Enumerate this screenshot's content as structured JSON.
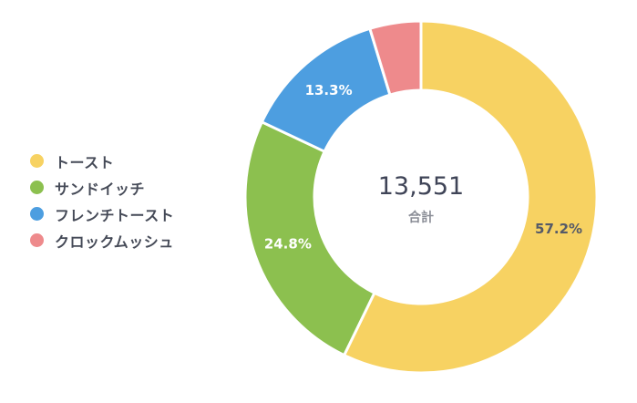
{
  "chart_data": {
    "type": "donut",
    "categories": [
      "トースト",
      "サンドイッチ",
      "フレンチトースト",
      "クロックムッシュ"
    ],
    "values": [
      57.2,
      24.8,
      13.3,
      4.7
    ],
    "data_labels": [
      "57.2%",
      "24.8%",
      "13.3%",
      ""
    ],
    "colors": [
      "#f7d262",
      "#8cc04f",
      "#4d9ee0",
      "#ee8a8c"
    ],
    "label_colors": [
      "#555a68",
      "#ffffff",
      "#ffffff",
      "#ffffff"
    ],
    "total_value": "13,551",
    "total_caption": "合計",
    "legend_position": "left"
  }
}
